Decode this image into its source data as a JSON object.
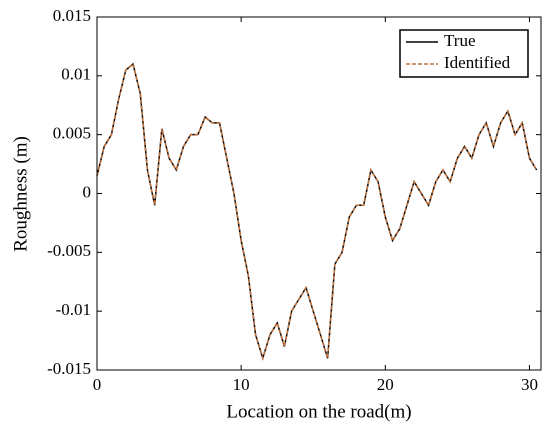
{
  "chart_data": {
    "type": "line",
    "xlabel": "Location on the road(m)",
    "ylabel": "Roughness (m)",
    "x": [
      0,
      0.5,
      1,
      1.5,
      2,
      2.5,
      3,
      3.5,
      4,
      4.5,
      5,
      5.5,
      6,
      6.5,
      7,
      7.5,
      8,
      8.5,
      9,
      9.5,
      10,
      10.5,
      11,
      11.5,
      12,
      12.5,
      13,
      13.5,
      14,
      14.5,
      15,
      15.5,
      16,
      16.5,
      17,
      17.5,
      18,
      18.5,
      19,
      19.5,
      20,
      20.5,
      21,
      21.5,
      22,
      22.5,
      23,
      23.5,
      24,
      24.5,
      25,
      25.5,
      26,
      26.5,
      27,
      27.5,
      28,
      28.5,
      29,
      29.5,
      30,
      30.5
    ],
    "series": [
      {
        "name": "True",
        "color": "#000000",
        "dash": false,
        "values": [
          0.0015,
          0.004,
          0.005,
          0.008,
          0.0105,
          0.011,
          0.0085,
          0.002,
          -0.001,
          0.0055,
          0.003,
          0.002,
          0.004,
          0.005,
          0.005,
          0.0065,
          0.006,
          0.006,
          0.003,
          0,
          -0.004,
          -0.007,
          -0.012,
          -0.014,
          -0.012,
          -0.011,
          -0.013,
          -0.01,
          -0.009,
          -0.008,
          -0.01,
          -0.012,
          -0.014,
          -0.006,
          -0.005,
          -0.002,
          -0.001,
          -0.001,
          0.002,
          0.001,
          -0.002,
          -0.004,
          -0.003,
          -0.001,
          0.001,
          0,
          -0.001,
          0.001,
          0.002,
          0.001,
          0.003,
          0.004,
          0.003,
          0.005,
          0.006,
          0.004,
          0.006,
          0.007,
          0.005,
          0.006,
          0.003,
          0.002
        ]
      },
      {
        "name": "Identified",
        "color": "#c0703a",
        "dash": true,
        "values": [
          0.0015,
          0.004,
          0.005,
          0.008,
          0.0105,
          0.011,
          0.0085,
          0.002,
          -0.001,
          0.0055,
          0.003,
          0.002,
          0.004,
          0.005,
          0.005,
          0.0065,
          0.006,
          0.006,
          0.003,
          0,
          -0.004,
          -0.007,
          -0.012,
          -0.014,
          -0.012,
          -0.011,
          -0.013,
          -0.01,
          -0.009,
          -0.008,
          -0.01,
          -0.012,
          -0.014,
          -0.006,
          -0.005,
          -0.002,
          -0.001,
          -0.001,
          0.002,
          0.001,
          -0.002,
          -0.004,
          -0.003,
          -0.001,
          0.001,
          0,
          -0.001,
          0.001,
          0.002,
          0.001,
          0.003,
          0.004,
          0.003,
          0.005,
          0.006,
          0.004,
          0.006,
          0.007,
          0.005,
          0.006,
          0.003,
          0.002
        ]
      }
    ],
    "xlim": [
      0,
      30.8
    ],
    "xticks": [
      0,
      10,
      20,
      30
    ],
    "ylim": [
      -0.015,
      0.015
    ],
    "yticks": [
      -0.015,
      -0.01,
      -0.005,
      0,
      0.005,
      0.01,
      0.015
    ],
    "grid": false,
    "legend": "upper right"
  }
}
